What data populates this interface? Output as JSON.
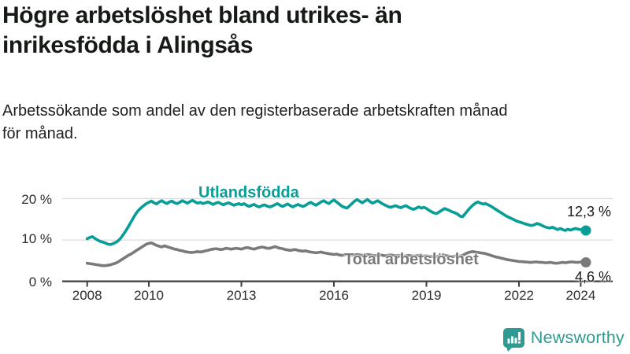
{
  "header": {
    "title_lines": [
      "Högre arbetslöshet bland utrikes- än",
      "inrikesfödda i Alingsås"
    ],
    "subtitle_lines": [
      "Arbetssökande som andel av den registerbaserade arbetskraften månad",
      "för månad."
    ]
  },
  "chart": {
    "y_tick_labels": [
      "20 %",
      "10 %",
      "0 %"
    ],
    "x_tick_labels": [
      "2008",
      "2010",
      "2013",
      "2016",
      "2019",
      "2022",
      "2024"
    ]
  },
  "colors": {
    "series_foreign_born": "#069e96",
    "series_total": "#7a7a7a",
    "axis": "#3f3f3f",
    "gridline": "#dcdcdc",
    "brand_teal": "#2f9a93"
  },
  "footer": {
    "brand": "Newsworthy"
  },
  "chart_data": {
    "type": "line",
    "title": "Högre arbetslöshet bland utrikes- än inrikesfödda i Alingsås",
    "subtitle": "Arbetssökande som andel av den registerbaserade arbetskraften månad för månad.",
    "unit": "%",
    "x_start": "2008-01",
    "x_interval": "monthly",
    "x_tick_years": [
      2008,
      2010,
      2013,
      2016,
      2019,
      2022,
      2024
    ],
    "y_ticks": [
      0,
      10,
      20
    ],
    "grid_values": [
      20,
      10
    ],
    "ylim": [
      0,
      22
    ],
    "legend_position": "inline-labels",
    "grid": "horizontal-only",
    "series": [
      {
        "name": "Utlandsfödda",
        "color": "#069e96",
        "end_label": "12,3 %",
        "end_value": 12.3,
        "values": [
          10.3,
          10.6,
          10.8,
          10.4,
          10.0,
          9.7,
          9.5,
          9.3,
          9.0,
          8.9,
          9.1,
          9.4,
          9.8,
          10.4,
          11.3,
          12.2,
          13.2,
          14.3,
          15.4,
          16.4,
          17.2,
          17.8,
          18.3,
          18.8,
          19.1,
          19.4,
          19.0,
          18.7,
          19.2,
          19.5,
          19.1,
          18.8,
          19.2,
          19.4,
          19.0,
          18.8,
          19.1,
          19.5,
          19.2,
          18.9,
          19.3,
          19.6,
          19.2,
          18.9,
          19.1,
          18.8,
          19.0,
          19.2,
          18.9,
          18.6,
          18.9,
          19.1,
          18.8,
          18.5,
          18.8,
          19.0,
          18.7,
          18.4,
          18.6,
          18.8,
          18.5,
          18.8,
          18.4,
          18.1,
          18.4,
          18.6,
          18.2,
          18.0,
          18.3,
          18.5,
          18.2,
          18.0,
          18.2,
          18.5,
          18.8,
          18.4,
          18.1,
          18.4,
          18.7,
          18.3,
          18.0,
          18.3,
          18.6,
          18.3,
          18.1,
          18.4,
          18.8,
          19.1,
          18.7,
          18.4,
          18.8,
          19.2,
          19.5,
          19.1,
          18.8,
          19.3,
          19.7,
          19.2,
          18.7,
          18.2,
          17.9,
          17.7,
          18.2,
          18.8,
          19.4,
          19.8,
          19.4,
          19.0,
          19.4,
          19.8,
          19.3,
          18.9,
          19.2,
          19.5,
          19.1,
          18.7,
          18.4,
          18.1,
          17.9,
          18.1,
          18.3,
          18.0,
          17.8,
          18.1,
          18.3,
          17.9,
          17.6,
          17.4,
          17.7,
          18.0,
          17.7,
          17.9,
          17.6,
          17.2,
          16.8,
          16.5,
          16.4,
          16.8,
          17.2,
          17.6,
          17.4,
          17.1,
          16.8,
          16.6,
          16.3,
          15.8,
          15.6,
          16.3,
          17.1,
          17.8,
          18.4,
          18.9,
          19.2,
          18.9,
          18.7,
          18.8,
          18.5,
          18.2,
          17.8,
          17.4,
          17.0,
          16.6,
          16.2,
          15.8,
          15.5,
          15.2,
          14.9,
          14.6,
          14.4,
          14.2,
          14.0,
          13.8,
          13.6,
          13.5,
          13.7,
          14.0,
          13.8,
          13.5,
          13.2,
          13.0,
          12.9,
          13.1,
          12.8,
          12.5,
          12.8,
          12.5,
          12.3,
          12.6,
          12.4,
          12.6,
          12.8,
          12.6,
          12.5,
          12.3,
          12.3
        ]
      },
      {
        "name": "Total arbetslöshet",
        "color": "#7a7a7a",
        "end_label": "4,6 %",
        "end_value": 4.6,
        "values": [
          4.4,
          4.3,
          4.2,
          4.1,
          4.0,
          3.9,
          3.8,
          3.8,
          3.9,
          4.0,
          4.2,
          4.4,
          4.7,
          5.1,
          5.5,
          5.9,
          6.3,
          6.6,
          7.0,
          7.4,
          7.8,
          8.2,
          8.6,
          9.0,
          9.2,
          9.3,
          9.0,
          8.7,
          8.5,
          8.3,
          8.6,
          8.4,
          8.2,
          8.0,
          7.8,
          7.7,
          7.5,
          7.4,
          7.2,
          7.1,
          7.0,
          7.0,
          7.1,
          7.2,
          7.1,
          7.2,
          7.4,
          7.5,
          7.7,
          7.8,
          7.9,
          7.8,
          7.7,
          7.8,
          8.0,
          7.9,
          7.8,
          7.9,
          8.0,
          7.9,
          7.8,
          8.0,
          8.2,
          8.1,
          7.9,
          7.8,
          8.0,
          8.2,
          8.3,
          8.2,
          8.0,
          8.0,
          8.2,
          8.4,
          8.2,
          8.0,
          7.9,
          7.7,
          7.6,
          7.5,
          7.6,
          7.7,
          7.5,
          7.4,
          7.3,
          7.4,
          7.2,
          7.1,
          7.0,
          6.9,
          7.0,
          7.1,
          6.9,
          6.8,
          6.7,
          6.6,
          6.5,
          6.6,
          6.4,
          6.3,
          6.4,
          6.5,
          6.4,
          6.3,
          6.4,
          6.5,
          6.4,
          6.3,
          6.4,
          6.5,
          6.4,
          6.3,
          6.2,
          6.3,
          6.4,
          6.3,
          6.2,
          6.3,
          6.4,
          6.3,
          6.2,
          6.3,
          6.2,
          6.1,
          6.2,
          6.3,
          6.2,
          6.1,
          6.2,
          6.3,
          6.2,
          6.1,
          6.2,
          6.1,
          6.0,
          5.9,
          6.0,
          6.1,
          6.2,
          6.3,
          6.2,
          6.1,
          6.0,
          6.1,
          6.2,
          6.1,
          6.3,
          6.6,
          6.9,
          7.1,
          7.2,
          7.1,
          7.0,
          6.9,
          6.8,
          6.7,
          6.5,
          6.3,
          6.1,
          5.9,
          5.8,
          5.6,
          5.5,
          5.3,
          5.2,
          5.1,
          5.0,
          4.9,
          4.8,
          4.8,
          4.7,
          4.7,
          4.6,
          4.6,
          4.7,
          4.7,
          4.6,
          4.6,
          4.5,
          4.5,
          4.6,
          4.5,
          4.4,
          4.4,
          4.5,
          4.6,
          4.5,
          4.6,
          4.7,
          4.7,
          4.6,
          4.6,
          4.7,
          4.6,
          4.6
        ]
      }
    ]
  }
}
